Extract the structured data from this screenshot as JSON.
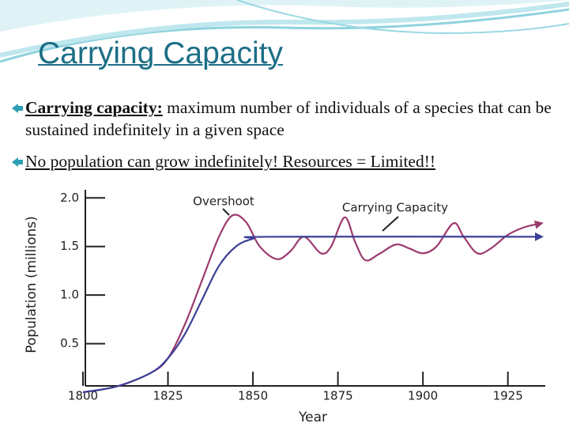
{
  "slide_title": "Carrying Capacity",
  "bullets": [
    {
      "term": "Carrying capacity:",
      "text": "maximum number of individuals of a species that can be sustained indefinitely in a given space"
    },
    {
      "text": "No population can grow indefinitely! Resources = Limited!!"
    }
  ],
  "chart_data": {
    "type": "line",
    "xlabel": "Year",
    "ylabel": "Population (millions)",
    "xlim": [
      1800,
      1936
    ],
    "ylim": [
      0,
      2.1
    ],
    "xticks": [
      1800,
      1825,
      1850,
      1875,
      1900,
      1925
    ],
    "yticks": [
      0.5,
      {
        "value": 1.0,
        "label": "1.0"
      },
      1.5,
      {
        "value": 2.0,
        "label": "2.0"
      }
    ],
    "series": [
      {
        "name": "Overshoot",
        "color": "#9c3a6e",
        "x": [
          1800,
          1810,
          1820,
          1825,
          1830,
          1835,
          1840,
          1844,
          1848,
          1852,
          1857,
          1861,
          1865,
          1870,
          1873,
          1877,
          1880,
          1883,
          1887,
          1892,
          1896,
          1900,
          1904,
          1909,
          1912,
          1916,
          1920,
          1925,
          1930,
          1935
        ],
        "values": [
          0,
          0.06,
          0.2,
          0.35,
          0.7,
          1.15,
          1.6,
          1.82,
          1.75,
          1.5,
          1.37,
          1.45,
          1.6,
          1.43,
          1.5,
          1.8,
          1.55,
          1.36,
          1.42,
          1.52,
          1.48,
          1.43,
          1.5,
          1.74,
          1.6,
          1.43,
          1.48,
          1.62,
          1.7,
          1.74
        ]
      },
      {
        "name": "Carrying Capacity",
        "color": "#3b3f96",
        "x": [
          1800,
          1810,
          1820,
          1825,
          1830,
          1835,
          1840,
          1845,
          1850,
          1855,
          1935
        ],
        "values": [
          0,
          0.06,
          0.2,
          0.35,
          0.6,
          0.95,
          1.3,
          1.5,
          1.58,
          1.6,
          1.6
        ]
      }
    ]
  }
}
